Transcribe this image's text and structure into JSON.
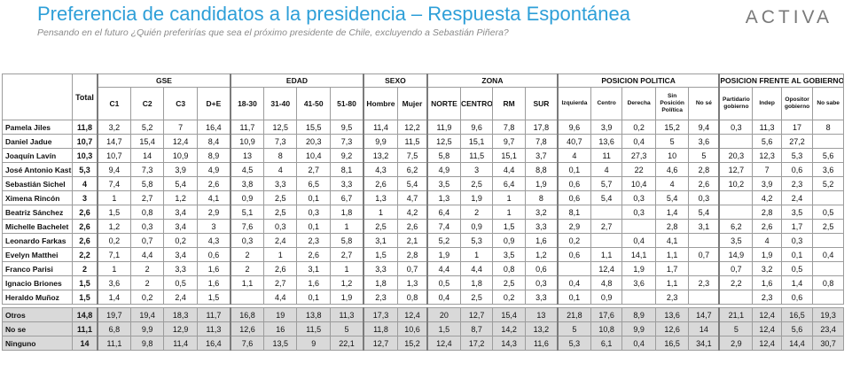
{
  "header": {
    "title": "Preferencia de candidatos a la presidencia – Respuesta Espontánea",
    "subtitle": "Pensando en el futuro ¿Quién preferirías que sea el próximo presidente de Chile, excluyendo a Sebastián Piñera?",
    "logo": "ACTIVA"
  },
  "table": {
    "total_label": "Total",
    "groups": [
      {
        "label": "GSE",
        "cols": [
          "C1",
          "C2",
          "C3",
          "D+E"
        ]
      },
      {
        "label": "EDAD",
        "cols": [
          "18-30",
          "31-40",
          "41-50",
          "51-80"
        ]
      },
      {
        "label": "SEXO",
        "cols": [
          "Hombre",
          "Mujer"
        ]
      },
      {
        "label": "ZONA",
        "cols": [
          "NORTE",
          "CENTRO",
          "RM",
          "SUR"
        ]
      },
      {
        "label": "POSICION POLITICA",
        "cols": [
          "Izquierda",
          "Centro",
          "Derecha",
          "Sin Posición Política",
          "No sé"
        ]
      },
      {
        "label": "POSICION FRENTE AL GOBIERNO",
        "cols": [
          "Partidario gobierno",
          "Indep",
          "Opositor gobierno",
          "No sabe"
        ]
      }
    ],
    "rows": [
      {
        "name": "Pamela Jiles",
        "total": "11,8",
        "values": [
          "3,2",
          "5,2",
          "7",
          "16,4",
          "11,7",
          "12,5",
          "15,5",
          "9,5",
          "11,4",
          "12,2",
          "11,9",
          "9,6",
          "7,8",
          "17,8",
          "9,6",
          "3,9",
          "0,2",
          "15,2",
          "9,4",
          "0,3",
          "11,3",
          "17",
          "8"
        ]
      },
      {
        "name": "Daniel Jadue",
        "total": "10,7",
        "values": [
          "14,7",
          "15,4",
          "12,4",
          "8,4",
          "10,9",
          "7,3",
          "20,3",
          "7,3",
          "9,9",
          "11,5",
          "12,5",
          "15,1",
          "9,7",
          "7,8",
          "40,7",
          "13,6",
          "0,4",
          "5",
          "3,6",
          "",
          "5,6",
          "27,2",
          ""
        ]
      },
      {
        "name": "Joaquín Lavín",
        "total": "10,3",
        "values": [
          "10,7",
          "14",
          "10,9",
          "8,9",
          "13",
          "8",
          "10,4",
          "9,2",
          "13,2",
          "7,5",
          "5,8",
          "11,5",
          "15,1",
          "3,7",
          "4",
          "11",
          "27,3",
          "10",
          "5",
          "20,3",
          "12,3",
          "5,3",
          "5,6"
        ]
      },
      {
        "name": "José Antonio Kast",
        "total": "5,3",
        "values": [
          "9,4",
          "7,3",
          "3,9",
          "4,9",
          "4,5",
          "4",
          "2,7",
          "8,1",
          "4,3",
          "6,2",
          "4,9",
          "3",
          "4,4",
          "8,8",
          "0,1",
          "4",
          "22",
          "4,6",
          "2,8",
          "12,7",
          "7",
          "0,6",
          "3,6"
        ]
      },
      {
        "name": "Sebastián Sichel",
        "total": "4",
        "values": [
          "7,4",
          "5,8",
          "5,4",
          "2,6",
          "3,8",
          "3,3",
          "6,5",
          "3,3",
          "2,6",
          "5,4",
          "3,5",
          "2,5",
          "6,4",
          "1,9",
          "0,6",
          "5,7",
          "10,4",
          "4",
          "2,6",
          "10,2",
          "3,9",
          "2,3",
          "5,2"
        ]
      },
      {
        "name": "Ximena Rincón",
        "total": "3",
        "values": [
          "1",
          "2,7",
          "1,2",
          "4,1",
          "0,9",
          "2,5",
          "0,1",
          "6,7",
          "1,3",
          "4,7",
          "1,3",
          "1,9",
          "1",
          "8",
          "0,6",
          "5,4",
          "0,3",
          "5,4",
          "0,3",
          "",
          "4,2",
          "2,4",
          ""
        ]
      },
      {
        "name": "Beatriz Sánchez",
        "total": "2,6",
        "values": [
          "1,5",
          "0,8",
          "3,4",
          "2,9",
          "5,1",
          "2,5",
          "0,3",
          "1,8",
          "1",
          "4,2",
          "6,4",
          "2",
          "1",
          "3,2",
          "8,1",
          "",
          "0,3",
          "1,4",
          "5,4",
          "",
          "2,8",
          "3,5",
          "0,5"
        ]
      },
      {
        "name": "Michelle Bachelet",
        "total": "2,6",
        "values": [
          "1,2",
          "0,3",
          "3,4",
          "3",
          "7,6",
          "0,3",
          "0,1",
          "1",
          "2,5",
          "2,6",
          "7,4",
          "0,9",
          "1,5",
          "3,3",
          "2,9",
          "2,7",
          "",
          "2,8",
          "3,1",
          "6,2",
          "2,6",
          "1,7",
          "2,5"
        ]
      },
      {
        "name": "Leonardo Farkas",
        "total": "2,6",
        "values": [
          "0,2",
          "0,7",
          "0,2",
          "4,3",
          "0,3",
          "2,4",
          "2,3",
          "5,8",
          "3,1",
          "2,1",
          "5,2",
          "5,3",
          "0,9",
          "1,6",
          "0,2",
          "",
          "0,4",
          "4,1",
          "",
          "3,5",
          "4",
          "0,3",
          ""
        ]
      },
      {
        "name": "Evelyn Matthei",
        "total": "2,2",
        "values": [
          "7,1",
          "4,4",
          "3,4",
          "0,6",
          "2",
          "1",
          "2,6",
          "2,7",
          "1,5",
          "2,8",
          "1,9",
          "1",
          "3,5",
          "1,2",
          "0,6",
          "1,1",
          "14,1",
          "1,1",
          "0,7",
          "14,9",
          "1,9",
          "0,1",
          "0,4"
        ]
      },
      {
        "name": "Franco Parisi",
        "total": "2",
        "values": [
          "1",
          "2",
          "3,3",
          "1,6",
          "2",
          "2,6",
          "3,1",
          "1",
          "3,3",
          "0,7",
          "4,4",
          "4,4",
          "0,8",
          "0,6",
          "",
          "12,4",
          "1,9",
          "1,7",
          "",
          "0,7",
          "3,2",
          "0,5",
          ""
        ]
      },
      {
        "name": "Ignacio Briones",
        "total": "1,5",
        "values": [
          "3,6",
          "2",
          "0,5",
          "1,6",
          "1,1",
          "2,7",
          "1,6",
          "1,2",
          "1,8",
          "1,3",
          "0,5",
          "1,8",
          "2,5",
          "0,3",
          "0,4",
          "4,8",
          "3,6",
          "1,1",
          "2,3",
          "2,2",
          "1,6",
          "1,4",
          "0,8"
        ]
      },
      {
        "name": "Heraldo Muñoz",
        "total": "1,5",
        "values": [
          "1,4",
          "0,2",
          "2,4",
          "1,5",
          "",
          "4,4",
          "0,1",
          "1,9",
          "2,3",
          "0,8",
          "0,4",
          "2,5",
          "0,2",
          "3,3",
          "0,1",
          "0,9",
          "",
          "2,3",
          "",
          "",
          "2,3",
          "0,6",
          ""
        ]
      }
    ],
    "summary_rows": [
      {
        "name": "Otros",
        "total": "14,8",
        "values": [
          "19,7",
          "19,4",
          "18,3",
          "11,7",
          "16,8",
          "19",
          "13,8",
          "11,3",
          "17,3",
          "12,4",
          "20",
          "12,7",
          "15,4",
          "13",
          "21,8",
          "17,6",
          "8,9",
          "13,6",
          "14,7",
          "21,1",
          "12,4",
          "16,5",
          "19,3"
        ]
      },
      {
        "name": "No se",
        "total": "11,1",
        "values": [
          "6,8",
          "9,9",
          "12,9",
          "11,3",
          "12,6",
          "16",
          "11,5",
          "5",
          "11,8",
          "10,6",
          "1,5",
          "8,7",
          "14,2",
          "13,2",
          "5",
          "10,8",
          "9,9",
          "12,6",
          "14",
          "5",
          "12,4",
          "5,6",
          "23,4"
        ]
      },
      {
        "name": "Ninguno",
        "total": "14",
        "values": [
          "11,1",
          "9,8",
          "11,4",
          "16,4",
          "7,6",
          "13,5",
          "9",
          "22,1",
          "12,7",
          "15,2",
          "12,4",
          "17,2",
          "14,3",
          "11,6",
          "5,3",
          "6,1",
          "0,4",
          "16,5",
          "34,1",
          "2,9",
          "12,4",
          "14,4",
          "30,7"
        ]
      }
    ]
  }
}
